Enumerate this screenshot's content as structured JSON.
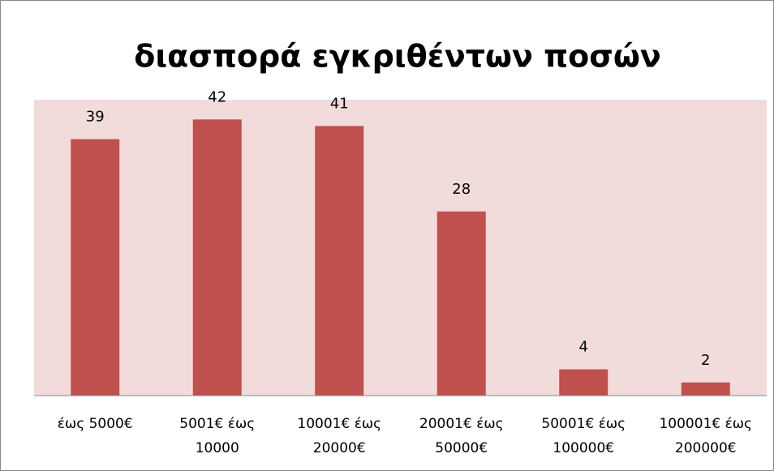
{
  "chart_data": {
    "type": "bar",
    "title": "διασπορά εγκριθέντων ποσών",
    "categories": [
      "έως 5000€",
      "5001€ έως 10000",
      "10001€ έως 20000€",
      "20001€ έως 50000€",
      "50001€ έως 100000€",
      "100001€ έως 200000€"
    ],
    "values": [
      39,
      42,
      41,
      28,
      4,
      2
    ],
    "color": "#c0504d"
  }
}
